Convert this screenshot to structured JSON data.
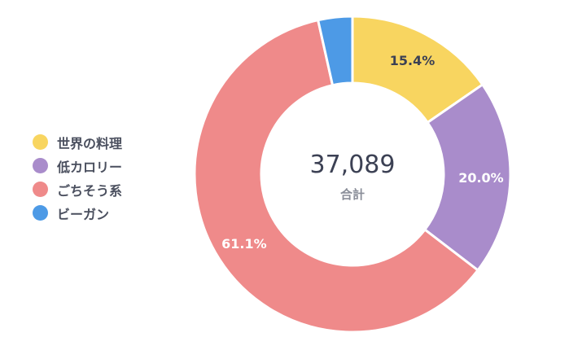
{
  "chart_data": {
    "type": "pie",
    "donut": true,
    "categories": [
      "世界の料理",
      "低カロリー",
      "ごちそう系",
      "ビーガン"
    ],
    "values": [
      15.4,
      20.0,
      61.1,
      3.5
    ],
    "value_labels": [
      "15.4%",
      "20.0%",
      "61.1%",
      ""
    ],
    "colors": [
      "#f8d560",
      "#a98ccb",
      "#ef8a8a",
      "#4d9ae6"
    ],
    "center_value": "37,089",
    "center_label": "合計",
    "legend_position": "left"
  }
}
